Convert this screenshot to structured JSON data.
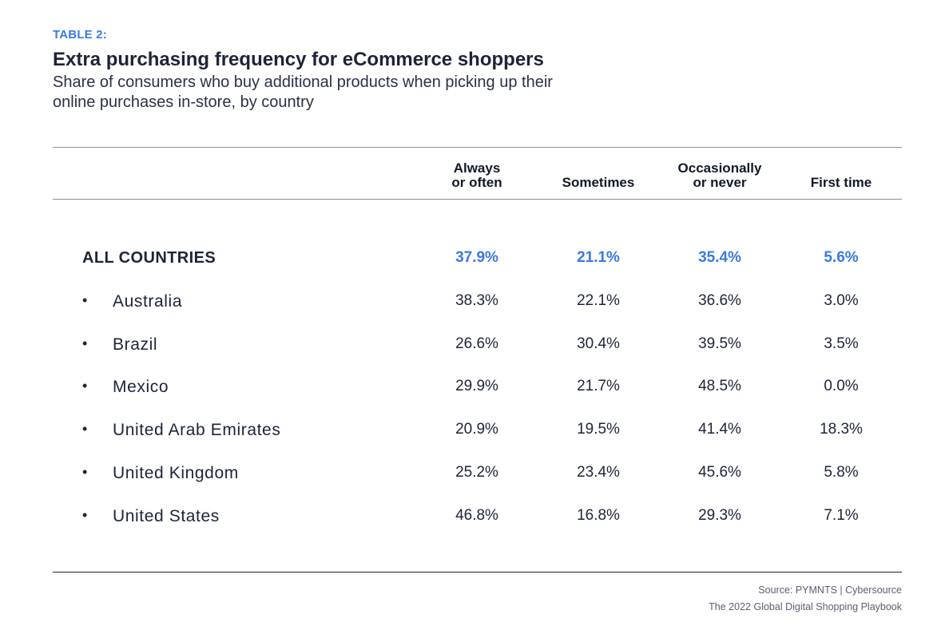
{
  "header": {
    "tag": "TABLE 2:",
    "title": "Extra purchasing frequency for eCommerce shoppers",
    "subtitle": "Share of consumers who buy additional products when picking up their online purchases in-store, by country"
  },
  "chart_data": {
    "type": "table",
    "columns": [
      "Always\nor often",
      "Sometimes",
      "Occasionally\nor never",
      "First time"
    ],
    "rows": [
      {
        "name": "ALL COUNTRIES",
        "bullet": "",
        "values": [
          "37.9%",
          "21.1%",
          "35.4%",
          "5.6%"
        ]
      },
      {
        "name": "Australia",
        "bullet": "•",
        "values": [
          "38.3%",
          "22.1%",
          "36.6%",
          "3.0%"
        ]
      },
      {
        "name": "Brazil",
        "bullet": "•",
        "values": [
          "26.6%",
          "30.4%",
          "39.5%",
          "3.5%"
        ]
      },
      {
        "name": "Mexico",
        "bullet": "•",
        "values": [
          "29.9%",
          "21.7%",
          "48.5%",
          "0.0%"
        ]
      },
      {
        "name": "United Arab Emirates",
        "bullet": "•",
        "values": [
          "20.9%",
          "19.5%",
          "41.4%",
          "18.3%"
        ]
      },
      {
        "name": "United Kingdom",
        "bullet": "•",
        "values": [
          "25.2%",
          "23.4%",
          "45.6%",
          "5.8%"
        ]
      },
      {
        "name": "United States",
        "bullet": "•",
        "values": [
          "46.8%",
          "16.8%",
          "29.3%",
          "7.1%"
        ]
      }
    ]
  },
  "footer": {
    "source": "Source:  PYMNTS  |  Cybersource",
    "publication": "The 2022 Global Digital Shopping Playbook"
  },
  "colors": {
    "accent": "#3b78e7",
    "text": "#1d2438"
  }
}
